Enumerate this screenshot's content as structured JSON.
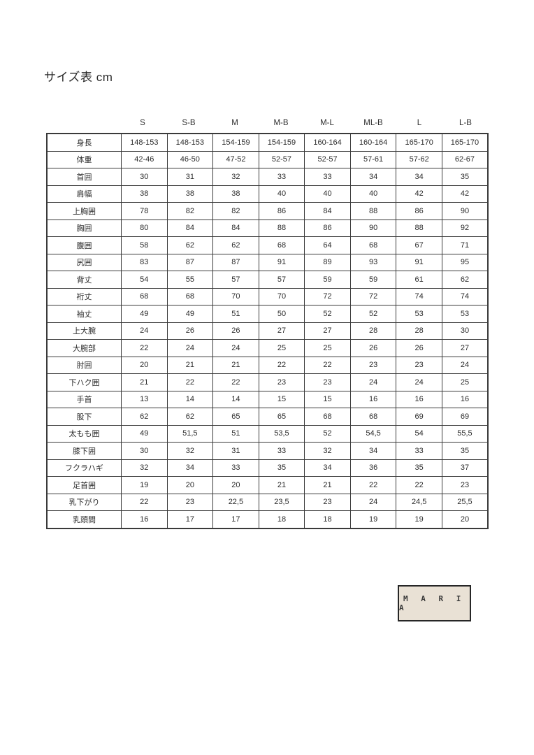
{
  "page": {
    "title": "サイズ表 cm"
  },
  "table": {
    "columns": [
      "S",
      "S-B",
      "M",
      "M-B",
      "M-L",
      "ML-B",
      "L",
      "L-B"
    ],
    "rows": [
      {
        "label": "身長",
        "values": [
          "148-153",
          "148-153",
          "154-159",
          "154-159",
          "160-164",
          "160-164",
          "165-170",
          "165-170"
        ]
      },
      {
        "label": "体重",
        "values": [
          "42-46",
          "46-50",
          "47-52",
          "52-57",
          "52-57",
          "57-61",
          "57-62",
          "62-67"
        ]
      },
      {
        "label": "首囲",
        "values": [
          "30",
          "31",
          "32",
          "33",
          "33",
          "34",
          "34",
          "35"
        ]
      },
      {
        "label": "肩幅",
        "values": [
          "38",
          "38",
          "38",
          "40",
          "40",
          "40",
          "42",
          "42"
        ]
      },
      {
        "label": "上胸囲",
        "values": [
          "78",
          "82",
          "82",
          "86",
          "84",
          "88",
          "86",
          "90"
        ]
      },
      {
        "label": "胸囲",
        "values": [
          "80",
          "84",
          "84",
          "88",
          "86",
          "90",
          "88",
          "92"
        ]
      },
      {
        "label": "腹囲",
        "values": [
          "58",
          "62",
          "62",
          "68",
          "64",
          "68",
          "67",
          "71"
        ]
      },
      {
        "label": "尻囲",
        "values": [
          "83",
          "87",
          "87",
          "91",
          "89",
          "93",
          "91",
          "95"
        ]
      },
      {
        "label": "背丈",
        "values": [
          "54",
          "55",
          "57",
          "57",
          "59",
          "59",
          "61",
          "62"
        ]
      },
      {
        "label": "裄丈",
        "values": [
          "68",
          "68",
          "70",
          "70",
          "72",
          "72",
          "74",
          "74"
        ]
      },
      {
        "label": "袖丈",
        "values": [
          "49",
          "49",
          "51",
          "50",
          "52",
          "52",
          "53",
          "53"
        ]
      },
      {
        "label": "上大腕",
        "values": [
          "24",
          "26",
          "26",
          "27",
          "27",
          "28",
          "28",
          "30"
        ]
      },
      {
        "label": "大腕部",
        "values": [
          "22",
          "24",
          "24",
          "25",
          "25",
          "26",
          "26",
          "27"
        ]
      },
      {
        "label": "肘囲",
        "values": [
          "20",
          "21",
          "21",
          "22",
          "22",
          "23",
          "23",
          "24"
        ]
      },
      {
        "label": "下ハク囲",
        "values": [
          "21",
          "22",
          "22",
          "23",
          "23",
          "24",
          "24",
          "25"
        ]
      },
      {
        "label": "手首",
        "values": [
          "13",
          "14",
          "14",
          "15",
          "15",
          "16",
          "16",
          "16"
        ]
      },
      {
        "label": "股下",
        "values": [
          "62",
          "62",
          "65",
          "65",
          "68",
          "68",
          "69",
          "69"
        ]
      },
      {
        "label": "太もも囲",
        "values": [
          "49",
          "51,5",
          "51",
          "53,5",
          "52",
          "54,5",
          "54",
          "55,5"
        ]
      },
      {
        "label": "膝下囲",
        "values": [
          "30",
          "32",
          "31",
          "33",
          "32",
          "34",
          "33",
          "35"
        ]
      },
      {
        "label": "フクラハギ",
        "values": [
          "32",
          "34",
          "33",
          "35",
          "34",
          "36",
          "35",
          "37"
        ]
      },
      {
        "label": "足首囲",
        "values": [
          "19",
          "20",
          "20",
          "21",
          "21",
          "22",
          "22",
          "23"
        ]
      },
      {
        "label": "乳下がり",
        "values": [
          "22",
          "23",
          "22,5",
          "23,5",
          "23",
          "24",
          "24,5",
          "25,5"
        ]
      },
      {
        "label": "乳頭間",
        "values": [
          "16",
          "17",
          "17",
          "18",
          "18",
          "19",
          "19",
          "20"
        ]
      }
    ]
  },
  "brand": {
    "label": "MARIA",
    "display": "M A R I A",
    "box_bg": "#e9e1d5",
    "box_border": "#262626"
  }
}
